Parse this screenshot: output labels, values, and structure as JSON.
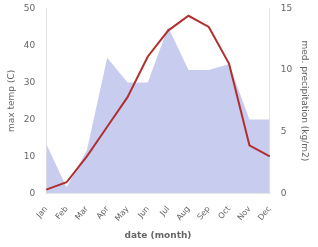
{
  "chart_data": {
    "type": "line",
    "xlabel": "date (month)",
    "ylabel": "max temp (C)",
    "y2label": "med. precipitation (kg/m2)",
    "categories": [
      "Jan",
      "Feb",
      "Mar",
      "Apr",
      "May",
      "Jun",
      "Jul",
      "Aug",
      "Sep",
      "Oct",
      "Nov",
      "Dec"
    ],
    "series": [
      {
        "type": "area",
        "color": "#c8cdf0",
        "axis": "y2",
        "values": [
          4.0,
          0.5,
          3.5,
          11.0,
          9.0,
          9.0,
          13.5,
          10.0,
          10.0,
          10.5,
          6.0,
          6.0
        ]
      },
      {
        "type": "line",
        "color": "#b03030",
        "values": [
          1,
          3,
          10,
          18,
          26,
          37,
          44,
          48,
          45,
          35,
          13,
          10
        ]
      }
    ],
    "ylim": [
      0,
      50
    ],
    "yticks": [
      0,
      10,
      20,
      30,
      40,
      50
    ],
    "y2lim": [
      0,
      15
    ],
    "y2ticks": [
      0,
      5,
      10,
      15
    ],
    "grid": false
  }
}
